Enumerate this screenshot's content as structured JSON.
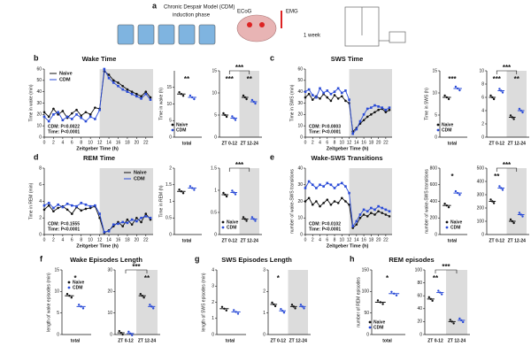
{
  "panel_a": {
    "label": "a",
    "title": "Chronic Despair Model (CDM)",
    "subtitle": "induction phase",
    "ecog": "ECoG",
    "emg": "EMG",
    "interval": "1 week"
  },
  "chart_data": [
    {
      "type": "line",
      "label": "b",
      "title": "Wake Time",
      "ylabel": "Time in wake (min)",
      "xlabel": "Zeitgeber Time (h)",
      "x": [
        0,
        1,
        2,
        3,
        4,
        5,
        6,
        7,
        8,
        9,
        10,
        11,
        12,
        13,
        14,
        15,
        16,
        17,
        18,
        19,
        20,
        21,
        22,
        23
      ],
      "xlim": [
        0,
        23
      ],
      "xticks": [
        0,
        2,
        4,
        6,
        8,
        10,
        12,
        14,
        16,
        18,
        20,
        22
      ],
      "ylim": [
        0,
        60
      ],
      "yticks": [
        0,
        10,
        20,
        30,
        40,
        50,
        60
      ],
      "shade": [
        12,
        23
      ],
      "legend": "upper left",
      "annotations": [
        "CDM: P=0.0022",
        "Time: P<0.0001"
      ],
      "series": [
        {
          "name": "Naive",
          "color": "#111111",
          "values": [
            22,
            18,
            25,
            20,
            23,
            17,
            21,
            24,
            19,
            22,
            20,
            26,
            25,
            58,
            55,
            50,
            48,
            45,
            42,
            40,
            38,
            36,
            40,
            35
          ]
        },
        {
          "name": "CDM",
          "color": "#2a4bd7",
          "values": [
            18,
            14,
            20,
            22,
            15,
            18,
            16,
            20,
            17,
            14,
            18,
            16,
            24,
            60,
            52,
            48,
            45,
            42,
            40,
            38,
            36,
            34,
            38,
            33
          ]
        }
      ]
    },
    {
      "type": "dot",
      "ylabel": "Time in wake (h)",
      "categories": [
        "total"
      ],
      "ylim": [
        0,
        20
      ],
      "yticks": [
        0,
        5,
        10,
        15
      ],
      "stars": [
        "**"
      ],
      "legend": "lower center",
      "series": [
        {
          "name": "Naive",
          "color": "#111111",
          "values": [
            13
          ]
        },
        {
          "name": "CDM",
          "color": "#2a4bd7",
          "values": [
            12
          ]
        }
      ]
    },
    {
      "type": "dot",
      "ylabel": "",
      "categories": [
        "ZT 0-12",
        "ZT 12-24"
      ],
      "ylim": [
        0,
        15
      ],
      "yticks": [
        0,
        5,
        10,
        15
      ],
      "stars": [
        "***",
        "**"
      ],
      "bracket": "***",
      "shade": true,
      "series": [
        {
          "name": "Naive",
          "color": "#111111",
          "values": [
            5,
            9
          ]
        },
        {
          "name": "CDM",
          "color": "#2a4bd7",
          "values": [
            4.3,
            8
          ]
        }
      ]
    },
    {
      "type": "line",
      "label": "c",
      "title": "SWS Time",
      "ylabel": "Time in SWS (min)",
      "xlabel": "Zeitgeber Time (h)",
      "x": [
        0,
        1,
        2,
        3,
        4,
        5,
        6,
        7,
        8,
        9,
        10,
        11,
        12,
        13,
        14,
        15,
        16,
        17,
        18,
        19,
        20,
        21,
        22,
        23
      ],
      "xlim": [
        0,
        23
      ],
      "xticks": [
        0,
        2,
        4,
        6,
        8,
        10,
        12,
        14,
        16,
        18,
        20,
        22
      ],
      "ylim": [
        0,
        60
      ],
      "yticks": [
        0,
        10,
        20,
        30,
        40,
        50,
        60
      ],
      "shade": [
        12,
        23
      ],
      "annotations": [
        "CDM: P=0.0003",
        "Time: P<0.0001"
      ],
      "series": [
        {
          "name": "Naive",
          "color": "#111111",
          "values": [
            35,
            38,
            33,
            36,
            34,
            38,
            35,
            32,
            37,
            34,
            36,
            32,
            30,
            5,
            8,
            12,
            15,
            18,
            20,
            22,
            24,
            25,
            22,
            24
          ]
        },
        {
          "name": "CDM",
          "color": "#2a4bd7",
          "values": [
            40,
            42,
            37,
            35,
            43,
            39,
            41,
            38,
            40,
            43,
            39,
            41,
            33,
            3,
            7,
            14,
            20,
            25,
            26,
            28,
            27,
            26,
            24,
            26
          ]
        }
      ]
    },
    {
      "type": "dot",
      "ylabel": "Time in SWS (h)",
      "categories": [
        "total"
      ],
      "ylim": [
        0,
        15
      ],
      "yticks": [
        0,
        5,
        10,
        15
      ],
      "stars": [
        "***"
      ],
      "legend": "lower center",
      "series": [
        {
          "name": "Naive",
          "color": "#111111",
          "values": [
            9
          ]
        },
        {
          "name": "CDM",
          "color": "#2a4bd7",
          "values": [
            11
          ]
        }
      ]
    },
    {
      "type": "dot",
      "ylabel": "",
      "categories": [
        "ZT 0-12",
        "ZT 12-24"
      ],
      "ylim": [
        0,
        10
      ],
      "yticks": [
        0,
        2,
        4,
        6,
        8,
        10
      ],
      "stars": [
        "***",
        "**"
      ],
      "bracket": "***",
      "shade": true,
      "series": [
        {
          "name": "Naive",
          "color": "#111111",
          "values": [
            6,
            3
          ]
        },
        {
          "name": "CDM",
          "color": "#2a4bd7",
          "values": [
            7,
            4
          ]
        }
      ]
    },
    {
      "type": "line",
      "label": "d",
      "title": "REM Time",
      "ylabel": "Time in REM (min)",
      "xlabel": "Zeitgeber Time (h)",
      "x": [
        0,
        1,
        2,
        3,
        4,
        5,
        6,
        7,
        8,
        9,
        10,
        11,
        12,
        13,
        14,
        15,
        16,
        17,
        18,
        19,
        20,
        21,
        22,
        23
      ],
      "xlim": [
        0,
        23
      ],
      "xticks": [
        0,
        2,
        4,
        6,
        8,
        10,
        12,
        14,
        16,
        18,
        20,
        22
      ],
      "ylim": [
        0,
        8
      ],
      "yticks": [
        0,
        2,
        4,
        6,
        8
      ],
      "shade": [
        12,
        23
      ],
      "legend": "upper right",
      "annotations": [
        "CDM: P=0.1555",
        "Time: P<0.0001"
      ],
      "series": [
        {
          "name": "Naive",
          "color": "#111111",
          "values": [
            3,
            3.5,
            2.8,
            3.2,
            3.4,
            3,
            2.5,
            3.3,
            2.9,
            3.1,
            3.2,
            3.4,
            2,
            0.2,
            0.5,
            1,
            1.5,
            1,
            1.8,
            1.2,
            2,
            1.5,
            2.5,
            1.8
          ]
        },
        {
          "name": "CDM",
          "color": "#2a4bd7",
          "values": [
            3.5,
            3.8,
            3.2,
            3.6,
            3.3,
            3.7,
            3.5,
            3.4,
            3.8,
            3.6,
            3.4,
            3.5,
            2.5,
            0.3,
            0.4,
            1.2,
            1.3,
            1.5,
            1.4,
            1.8,
            1.6,
            2,
            2.2,
            2
          ]
        }
      ]
    },
    {
      "type": "dot",
      "ylabel": "Time in REM (h)",
      "categories": [
        "total"
      ],
      "ylim": [
        0,
        2
      ],
      "yticks": [
        0.0,
        0.5,
        1.0,
        1.5,
        2.0
      ],
      "stars": [
        null
      ],
      "series": [
        {
          "name": "Naive",
          "color": "#111111",
          "values": [
            1.3
          ]
        },
        {
          "name": "CDM",
          "color": "#2a4bd7",
          "values": [
            1.4
          ]
        }
      ]
    },
    {
      "type": "dot",
      "ylabel": "",
      "categories": [
        "ZT 0-12",
        "ZT 12-24"
      ],
      "ylim": [
        0,
        1.5
      ],
      "yticks": [
        0.0,
        0.5,
        1.0,
        1.5
      ],
      "stars": [
        null,
        null
      ],
      "bracket": "***",
      "shade": true,
      "legend": "lower left",
      "series": [
        {
          "name": "Naive",
          "color": "#111111",
          "values": [
            0.9,
            0.35
          ]
        },
        {
          "name": "CDM",
          "color": "#2a4bd7",
          "values": [
            0.95,
            0.35
          ]
        }
      ]
    },
    {
      "type": "line",
      "label": "e",
      "title": "Wake-SWS Transitions",
      "ylabel": "number of wake-SWS transitions",
      "xlabel": "Zeitgeber Time (h)",
      "x": [
        0,
        1,
        2,
        3,
        4,
        5,
        6,
        7,
        8,
        9,
        10,
        11,
        12,
        13,
        14,
        15,
        16,
        17,
        18,
        19,
        20,
        21,
        22,
        23
      ],
      "xlim": [
        0,
        23
      ],
      "xticks": [
        0,
        2,
        4,
        6,
        8,
        10,
        12,
        14,
        16,
        18,
        20,
        22
      ],
      "ylim": [
        0,
        40
      ],
      "yticks": [
        0,
        10,
        20,
        30,
        40
      ],
      "shade": [
        12,
        23
      ],
      "annotations": [
        "CDM: P=0.0102",
        "Time: P<0.0001"
      ],
      "series": [
        {
          "name": "Naive",
          "color": "#111111",
          "values": [
            20,
            22,
            18,
            20,
            17,
            19,
            21,
            18,
            20,
            19,
            22,
            20,
            18,
            4,
            6,
            10,
            12,
            11,
            13,
            12,
            14,
            13,
            12,
            11
          ]
        },
        {
          "name": "CDM",
          "color": "#2a4bd7",
          "values": [
            28,
            32,
            30,
            28,
            30,
            29,
            31,
            30,
            28,
            30,
            31,
            29,
            25,
            5,
            8,
            12,
            15,
            14,
            16,
            15,
            17,
            16,
            15,
            14
          ]
        }
      ]
    },
    {
      "type": "dot",
      "ylabel": "number of wake-SWS transitions",
      "categories": [
        "total"
      ],
      "ylim": [
        0,
        800
      ],
      "yticks": [
        0,
        200,
        400,
        600,
        800
      ],
      "stars": [
        "*"
      ],
      "legend": "lower right",
      "series": [
        {
          "name": "Naive",
          "color": "#111111",
          "values": [
            350
          ]
        },
        {
          "name": "CDM",
          "color": "#2a4bd7",
          "values": [
            500
          ]
        }
      ]
    },
    {
      "type": "dot",
      "ylabel": "",
      "categories": [
        "ZT 0-12",
        "ZT 12-24"
      ],
      "ylim": [
        0,
        500
      ],
      "yticks": [
        0,
        100,
        200,
        300,
        400,
        500
      ],
      "stars": [
        "**",
        null
      ],
      "bracket": "***",
      "shade": true,
      "series": [
        {
          "name": "Naive",
          "color": "#111111",
          "values": [
            250,
            100
          ]
        },
        {
          "name": "CDM",
          "color": "#2a4bd7",
          "values": [
            350,
            150
          ]
        }
      ]
    },
    {
      "type": "dot",
      "label": "f",
      "title": "Wake Episodes Length",
      "ylabel": "length of wake episodes (min)",
      "categories": [
        "total"
      ],
      "ylim": [
        0,
        15
      ],
      "yticks": [
        0,
        5,
        10,
        15
      ],
      "stars": [
        "*"
      ],
      "legend": "upper right",
      "series": [
        {
          "name": "Naive",
          "color": "#111111",
          "values": [
            9
          ]
        },
        {
          "name": "CDM",
          "color": "#2a4bd7",
          "values": [
            6.5
          ]
        }
      ]
    },
    {
      "type": "dot",
      "ylabel": "",
      "categories": [
        "ZT 0-12",
        "ZT 12-24"
      ],
      "ylim": [
        0,
        30
      ],
      "yticks": [
        0,
        10,
        20,
        30
      ],
      "stars": [
        null,
        "**"
      ],
      "bracket": "***",
      "shade": true,
      "series": [
        {
          "name": "Naive",
          "color": "#111111",
          "values": [
            0.8,
            18
          ]
        },
        {
          "name": "CDM",
          "color": "#2a4bd7",
          "values": [
            0.5,
            13
          ]
        }
      ]
    },
    {
      "type": "dot",
      "label": "g",
      "title": "SWS Episodes Length",
      "ylabel": "length of SWS episodes (min)",
      "categories": [
        "total"
      ],
      "ylim": [
        0,
        4
      ],
      "yticks": [
        0,
        1,
        2,
        3,
        4
      ],
      "stars": [
        null
      ],
      "series": [
        {
          "name": "Naive",
          "color": "#111111",
          "values": [
            1.6
          ]
        },
        {
          "name": "CDM",
          "color": "#2a4bd7",
          "values": [
            1.4
          ]
        }
      ]
    },
    {
      "type": "dot",
      "ylabel": "",
      "categories": [
        "ZT 0-12",
        "ZT 12-24"
      ],
      "ylim": [
        0,
        3
      ],
      "yticks": [
        0,
        1,
        2,
        3
      ],
      "stars": [
        "*",
        null
      ],
      "shade": true,
      "series": [
        {
          "name": "Naive",
          "color": "#111111",
          "values": [
            1.4,
            1.3
          ]
        },
        {
          "name": "CDM",
          "color": "#2a4bd7",
          "values": [
            1.1,
            1.3
          ]
        }
      ]
    },
    {
      "type": "dot",
      "label": "h",
      "title": "REM episodes",
      "ylabel": "number of REM episodes",
      "categories": [
        "total"
      ],
      "ylim": [
        0,
        150
      ],
      "yticks": [
        0,
        50,
        100,
        150
      ],
      "stars": [
        "*"
      ],
      "legend": "lower center",
      "series": [
        {
          "name": "Naive",
          "color": "#111111",
          "values": [
            75
          ]
        },
        {
          "name": "CDM",
          "color": "#2a4bd7",
          "values": [
            95
          ]
        }
      ]
    },
    {
      "type": "dot",
      "ylabel": "",
      "categories": [
        "ZT 0-12",
        "ZT 12-24"
      ],
      "ylim": [
        0,
        100
      ],
      "yticks": [
        0,
        20,
        40,
        60,
        80,
        100
      ],
      "stars": [
        "**",
        null
      ],
      "bracket": "***",
      "shade": true,
      "series": [
        {
          "name": "Naive",
          "color": "#111111",
          "values": [
            55,
            20
          ]
        },
        {
          "name": "CDM",
          "color": "#2a4bd7",
          "values": [
            65,
            22
          ]
        }
      ]
    }
  ]
}
